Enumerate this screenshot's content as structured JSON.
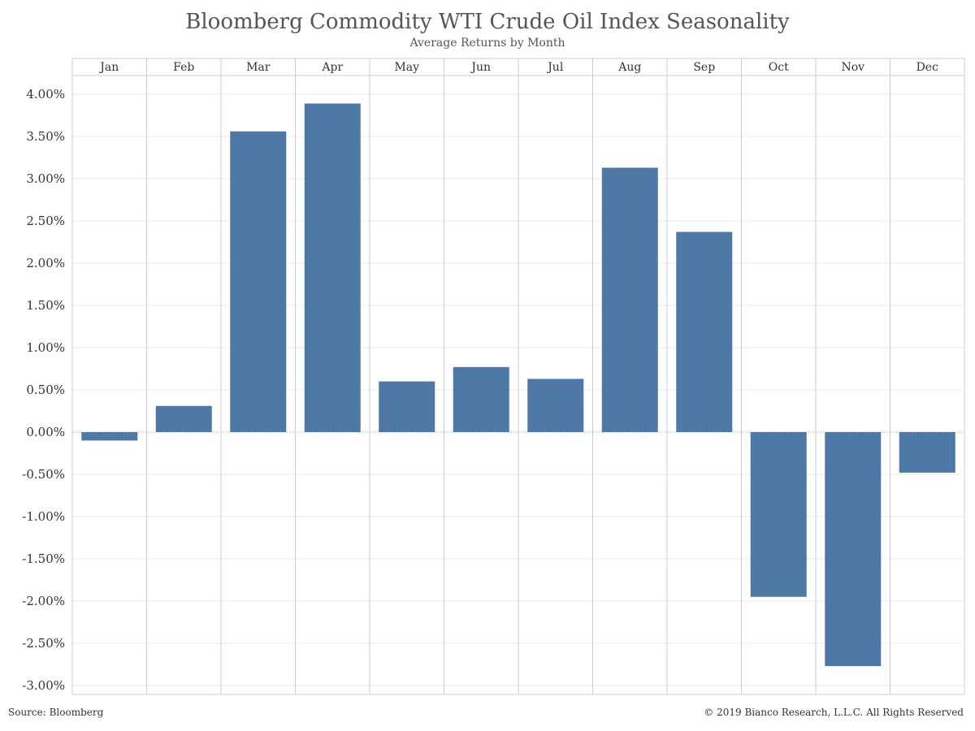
{
  "chart_data": {
    "type": "bar",
    "title": "Bloomberg Commodity WTI Crude Oil Index Seasonality",
    "subtitle": "Average Returns by Month",
    "categories": [
      "Jan",
      "Feb",
      "Mar",
      "Apr",
      "May",
      "Jun",
      "Jul",
      "Aug",
      "Sep",
      "Oct",
      "Nov",
      "Dec"
    ],
    "values": [
      -0.1,
      0.31,
      3.56,
      3.89,
      0.6,
      0.77,
      0.63,
      3.13,
      2.37,
      -1.95,
      -2.77,
      -0.48
    ],
    "value_unit": "%",
    "ylim": [
      -3.0,
      4.0
    ],
    "yticks": [
      4.0,
      3.5,
      3.0,
      2.5,
      2.0,
      1.5,
      1.0,
      0.5,
      0.0,
      -0.5,
      -1.0,
      -1.5,
      -2.0,
      -2.5,
      -3.0
    ],
    "ytick_labels": [
      "4.00%",
      "3.50%",
      "3.00%",
      "2.50%",
      "2.00%",
      "1.50%",
      "1.00%",
      "0.50%",
      "0.00%",
      "-0.50%",
      "-1.00%",
      "-1.50%",
      "-2.00%",
      "-2.50%",
      "-3.00%"
    ],
    "category_axis_position": "top",
    "grid": true,
    "bar_color": "#4e79a7",
    "grid_color": "#ebebeb",
    "divider_color": "#cccccc"
  },
  "footer": {
    "source": "Source: Bloomberg",
    "copyright": "© 2019 Bianco Research, L.L.C. All Rights Reserved"
  }
}
